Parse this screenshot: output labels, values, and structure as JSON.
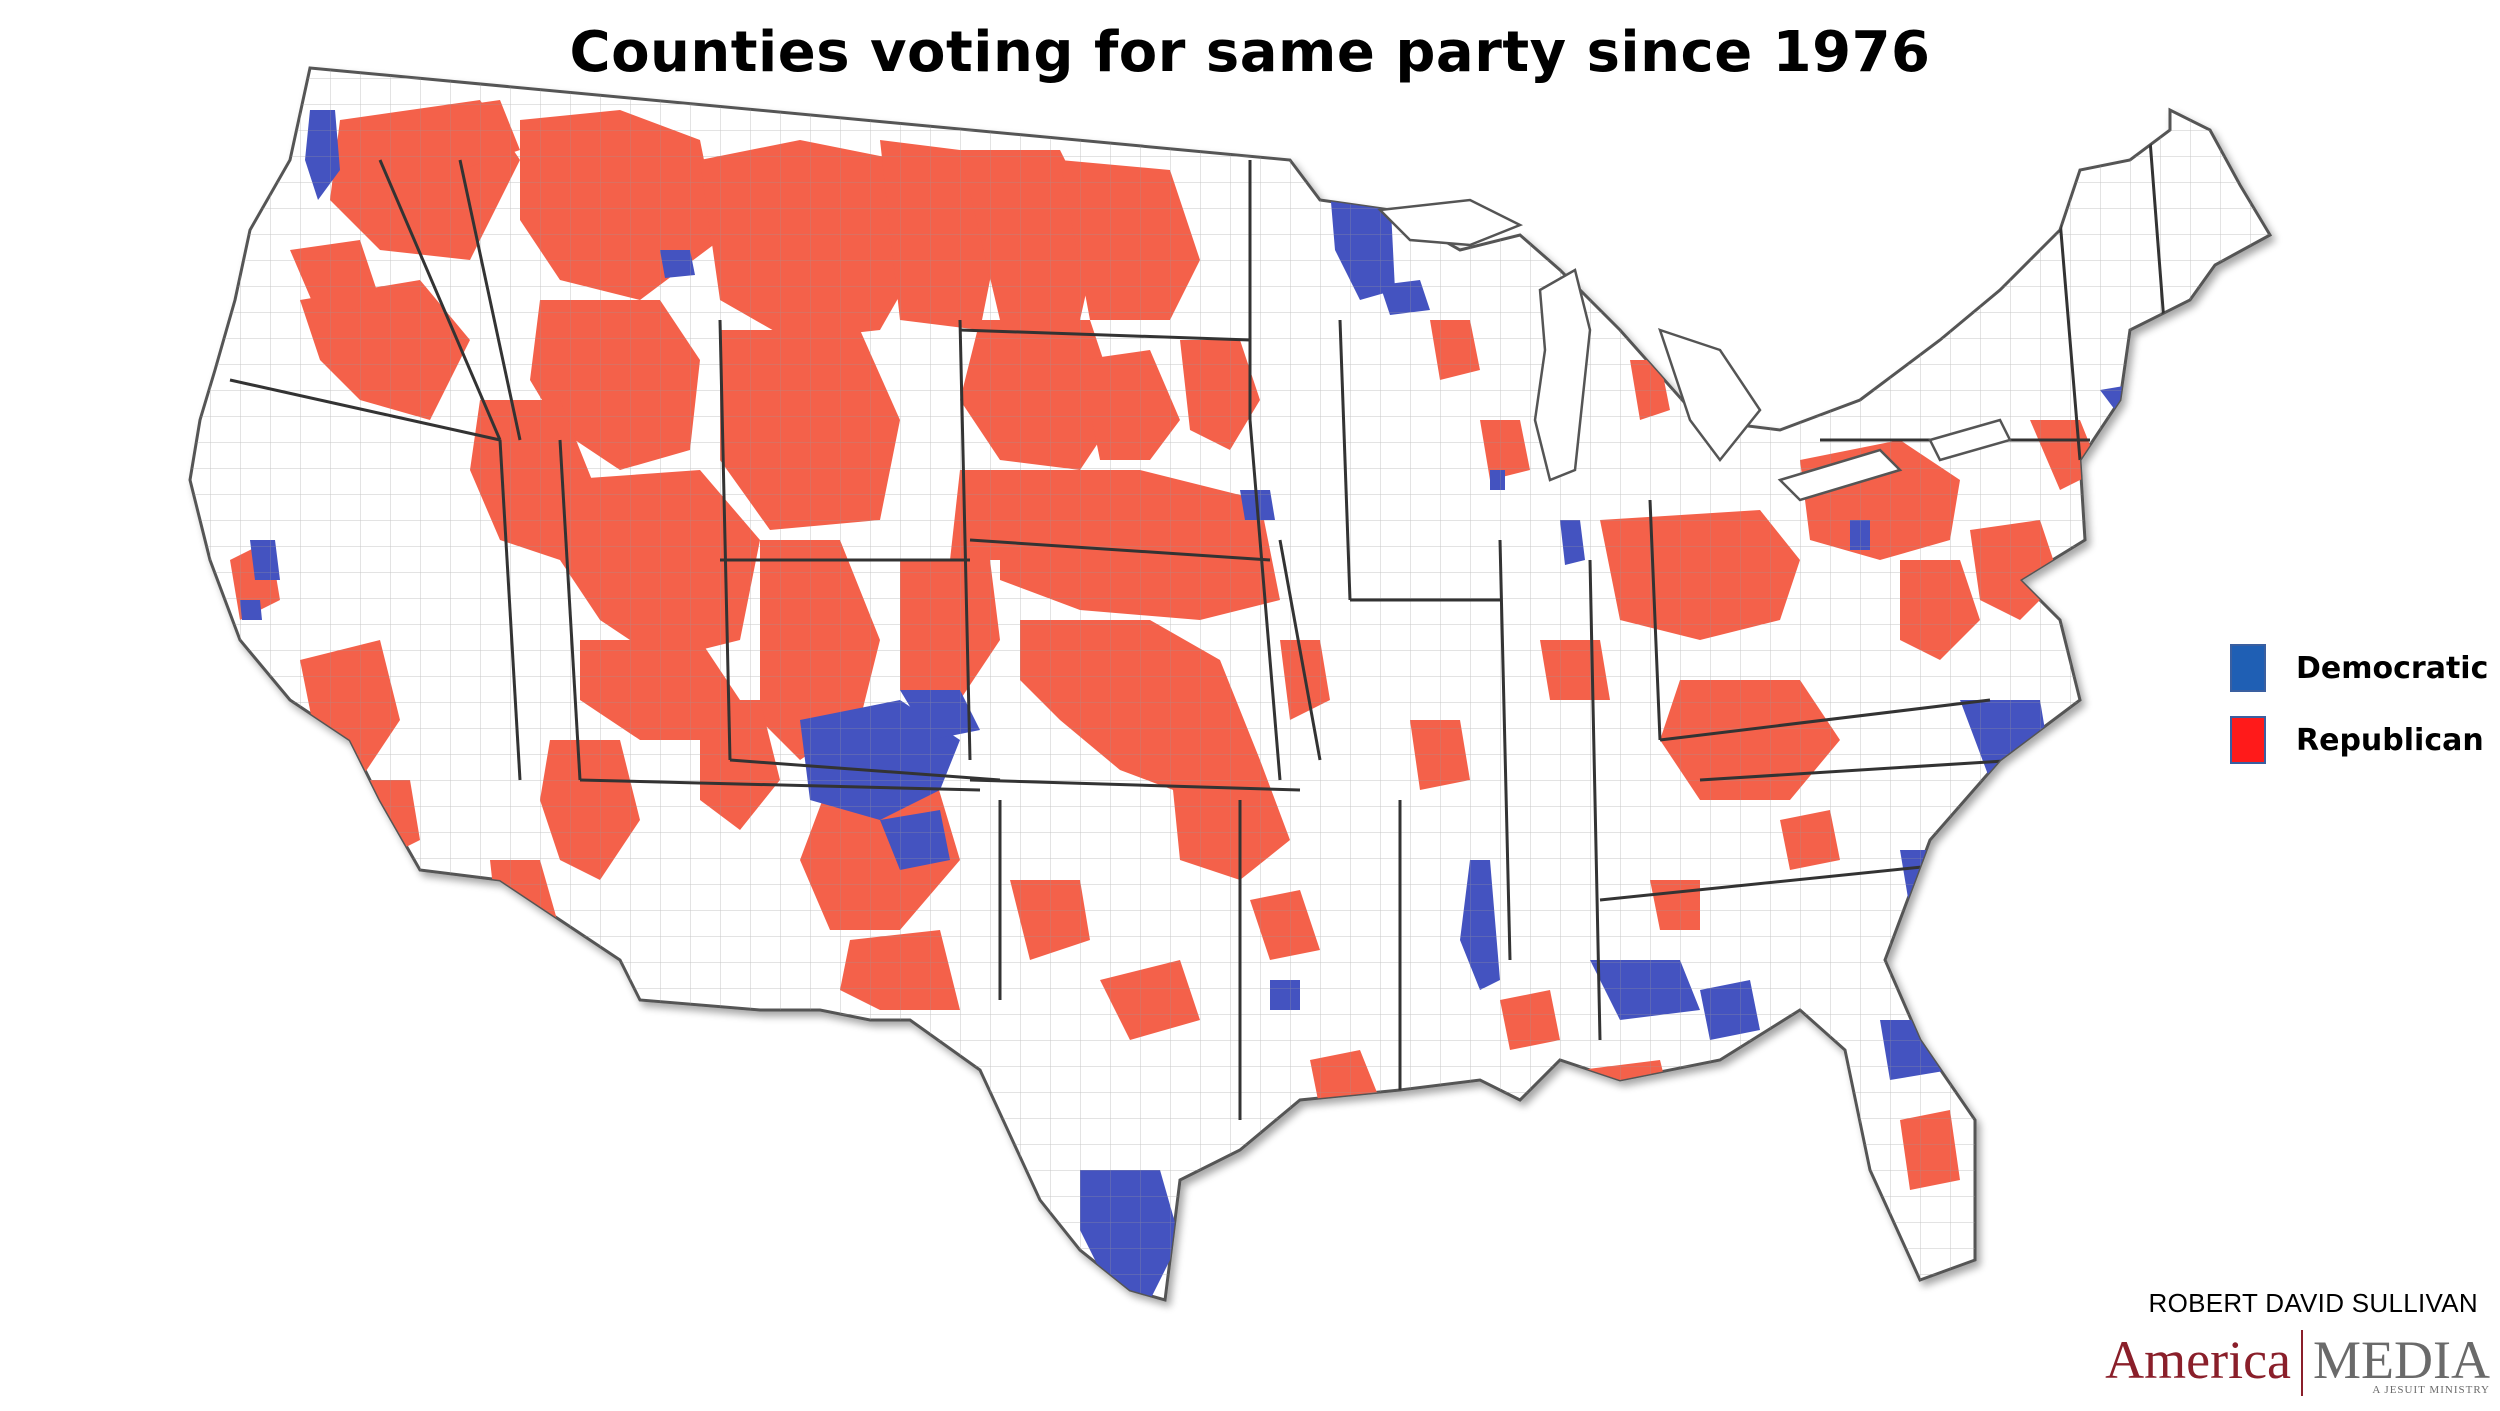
{
  "title": "Counties voting for same party since 1976",
  "legend": [
    {
      "label": "Democratic",
      "color": "#1f5fb4"
    },
    {
      "label": "Republican",
      "color": "#ff1a1a"
    }
  ],
  "credit": "ROBERT DAVID SULLIVAN",
  "brand": {
    "part1": "America",
    "part2": "MEDIA",
    "tagline": "A JESUIT MINISTRY"
  },
  "map_colors": {
    "republican_fill": "#f4614a",
    "democratic_fill": "#4453c0",
    "neutral_fill": "#ffffff",
    "county_stroke": "#7a7a7a",
    "state_stroke": "#333333"
  }
}
